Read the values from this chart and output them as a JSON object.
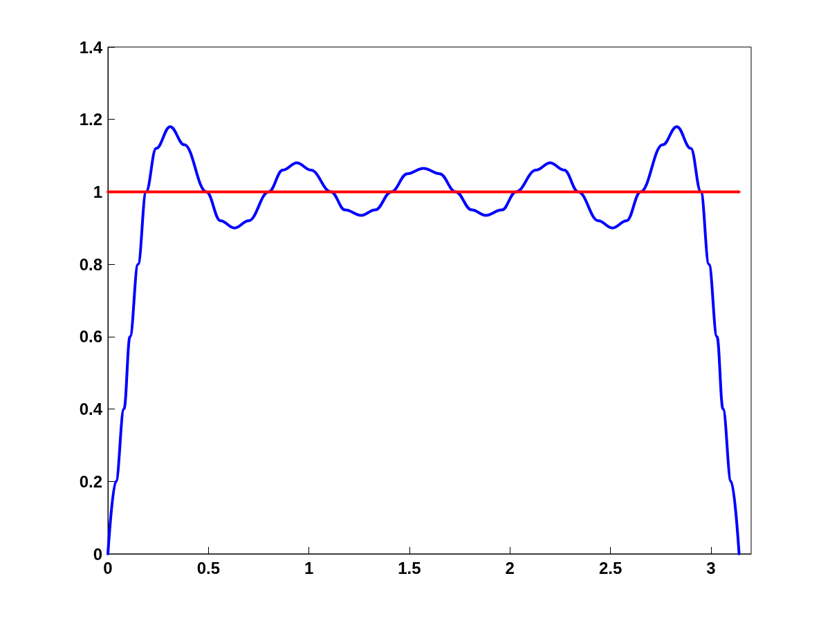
{
  "chart_data": {
    "type": "line",
    "xlim": [
      0,
      3.2
    ],
    "ylim": [
      0,
      1.4
    ],
    "xticks": [
      0,
      0.5,
      1,
      1.5,
      2,
      2.5,
      3
    ],
    "yticks": [
      0,
      0.2,
      0.4,
      0.6,
      0.8,
      1,
      1.2,
      1.4
    ],
    "grid": false,
    "marker": "none",
    "line_style": "solid",
    "series": [
      {
        "color": "#0000ff",
        "x": [
          0,
          0.04,
          0.08,
          0.11,
          0.15,
          0.19,
          0.24,
          0.31,
          0.38,
          0.49,
          0.56,
          0.63,
          0.7,
          0.8,
          0.87,
          0.94,
          1.01,
          1.11,
          1.18,
          1.26,
          1.33,
          1.41,
          1.49,
          1.57,
          1.65,
          1.73,
          1.81,
          1.88,
          1.96,
          2.03,
          2.13,
          2.2,
          2.27,
          2.34,
          2.44,
          2.51,
          2.58,
          2.65,
          2.76,
          2.83,
          2.9,
          2.95,
          2.99,
          3.03,
          3.06,
          3.1,
          3.14
        ],
        "values": [
          0,
          0.2,
          0.4,
          0.6,
          0.8,
          1,
          1.12,
          1.18,
          1.13,
          1,
          0.92,
          0.9,
          0.92,
          1,
          1.06,
          1.08,
          1.06,
          1,
          0.95,
          0.935,
          0.95,
          1,
          1.05,
          1.065,
          1.05,
          1,
          0.95,
          0.935,
          0.95,
          1,
          1.06,
          1.08,
          1.06,
          1,
          0.92,
          0.9,
          0.92,
          1,
          1.13,
          1.18,
          1.12,
          1,
          0.8,
          0.6,
          0.4,
          0.2,
          0
        ]
      },
      {
        "color": "#ff0000",
        "x": [
          0,
          3.14
        ],
        "values": [
          1,
          1
        ]
      }
    ]
  }
}
